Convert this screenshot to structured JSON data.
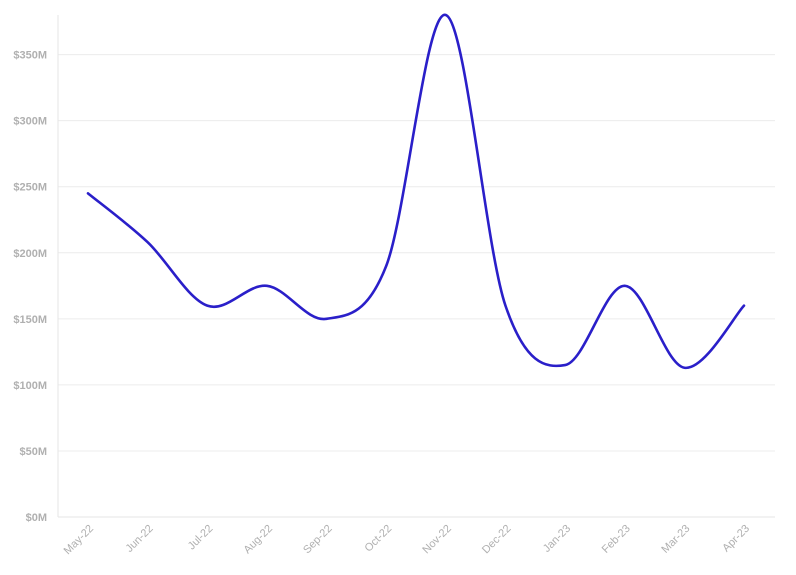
{
  "chart_data": {
    "type": "line",
    "title": "",
    "xlabel": "",
    "ylabel": "",
    "categories": [
      "May-22",
      "Jun-22",
      "Jul-22",
      "Aug-22",
      "Sep-22",
      "Oct-22",
      "Nov-22",
      "Dec-22",
      "Jan-23",
      "Feb-23",
      "Mar-23",
      "Apr-23"
    ],
    "series": [
      {
        "values": [
          245,
          208,
          160,
          175,
          150,
          190,
          380,
          160,
          115,
          175,
          113,
          160
        ]
      }
    ],
    "ylim": [
      0,
      380
    ],
    "yticks": [
      0,
      50,
      100,
      150,
      200,
      250,
      300,
      350
    ],
    "ytick_labels": [
      "$0M",
      "$50M",
      "$100M",
      "$150M",
      "$200M",
      "$250M",
      "$300M",
      "$350M"
    ],
    "grid": true,
    "legend": "none",
    "colors": {
      "line": "#2a1fc9"
    }
  }
}
